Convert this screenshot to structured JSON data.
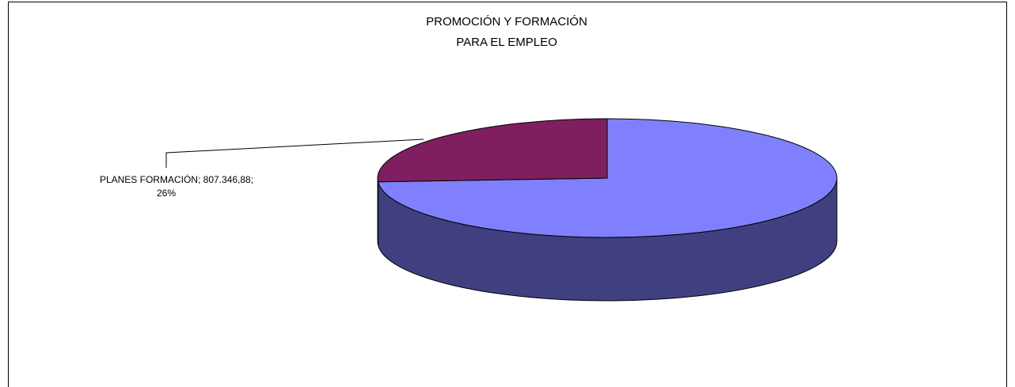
{
  "chart_data": {
    "type": "pie",
    "title": [
      "PROMOCIÓN Y FORMACIÓN",
      "PARA EL EMPLEO"
    ],
    "categories": [
      null,
      "PLANES FORMACIÓN"
    ],
    "values": [
      74,
      26
    ],
    "value_labels": [
      null,
      "26%"
    ],
    "amounts": [
      null,
      807346.88
    ],
    "amount_labels": [
      null,
      "807.346,88"
    ],
    "colors": [
      "#8080ff",
      "#7f1f5f"
    ],
    "side_colors": [
      "#404080",
      "#40102f"
    ]
  }
}
